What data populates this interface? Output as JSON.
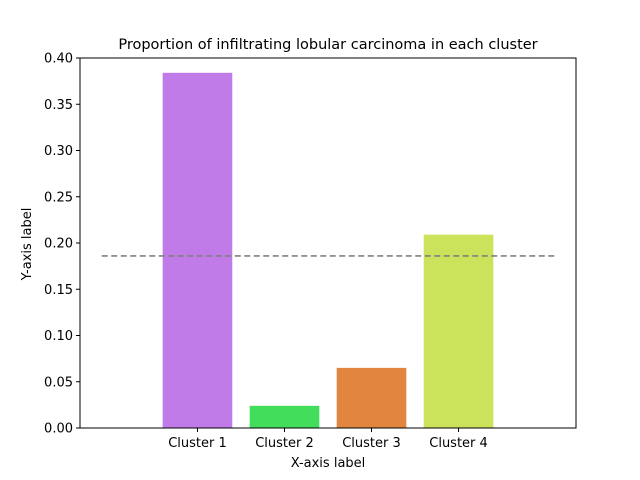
{
  "chart_data": {
    "type": "bar",
    "title": "Proportion of infiltrating lobular carcinoma in each cluster",
    "xlabel": "X-axis label",
    "ylabel": "Y-axis label",
    "categories": [
      "Cluster 1",
      "Cluster 2",
      "Cluster 3",
      "Cluster 4"
    ],
    "values": [
      0.384,
      0.024,
      0.065,
      0.209
    ],
    "colors": [
      "#c17be9",
      "#43dd5c",
      "#e1853f",
      "#cbe35a"
    ],
    "ylim": [
      0.0,
      0.4
    ],
    "yticks": [
      0.0,
      0.05,
      0.1,
      0.15,
      0.2,
      0.25,
      0.3,
      0.35,
      0.4
    ],
    "ytick_labels": [
      "0.00",
      "0.05",
      "0.10",
      "0.15",
      "0.20",
      "0.25",
      "0.30",
      "0.35",
      "0.40"
    ],
    "reference_line": {
      "value": 0.186,
      "style": "dashed",
      "color": "#808080"
    },
    "grid": false,
    "legend": false
  }
}
